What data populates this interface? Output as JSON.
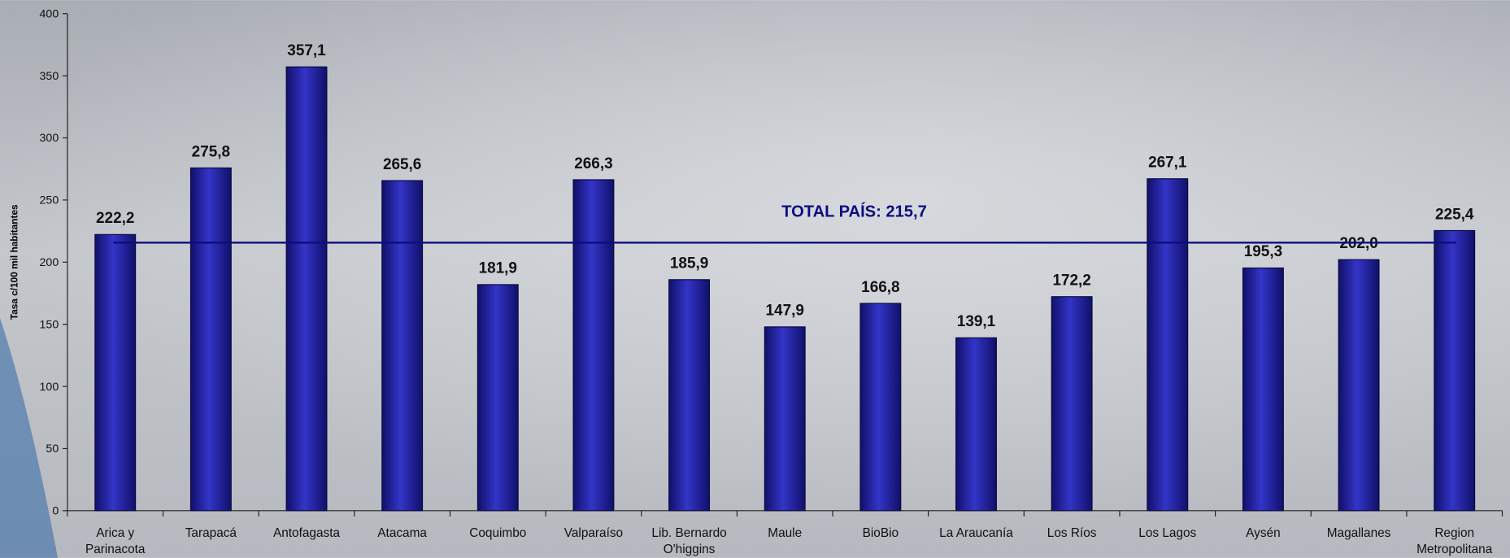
{
  "chart_data": {
    "type": "bar",
    "y_label": "Tasa c/100 mil habitantes",
    "categories": [
      "Arica y\nParinacota",
      "Tarapacá",
      "Antofagasta",
      "Atacama",
      "Coquimbo",
      "Valparaíso",
      "Lib. Bernardo\nO'higgins",
      "Maule",
      "BioBio",
      "La Araucanía",
      "Los Ríos",
      "Los Lagos",
      "Aysén",
      "Magallanes",
      "Region\nMetropolitana"
    ],
    "values": [
      222.2,
      275.8,
      357.1,
      265.6,
      181.9,
      266.3,
      185.9,
      147.9,
      166.8,
      139.1,
      172.2,
      267.1,
      195.3,
      202.0,
      225.4
    ],
    "value_labels": [
      "222,2",
      "275,8",
      "357,1",
      "265,6",
      "181,9",
      "266,3",
      "185,9",
      "147,9",
      "166,8",
      "139,1",
      "172,2",
      "267,1",
      "195,3",
      "202,0",
      "225,4"
    ],
    "color": "#2626b0",
    "ylim": [
      0,
      400
    ],
    "yticks": [
      0,
      50,
      100,
      150,
      200,
      250,
      300,
      350,
      400
    ],
    "grid": false,
    "reference_line": {
      "value": 215.7,
      "label": "TOTAL PAÍS: 215,7",
      "color": "#0c0c80"
    }
  }
}
